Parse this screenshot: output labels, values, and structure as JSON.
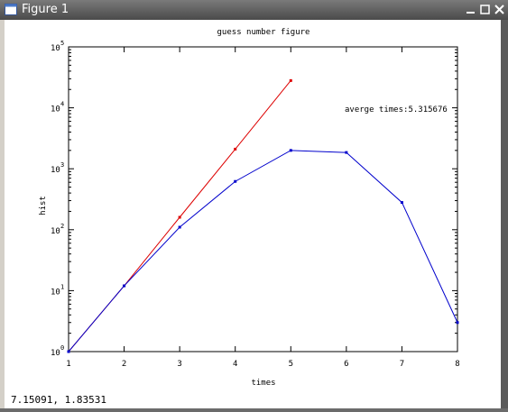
{
  "window": {
    "title": "Figure 1",
    "buttons": [
      "minimize",
      "maximize",
      "close"
    ]
  },
  "status": {
    "coordinates": "7.15091,  1.83531"
  },
  "chart_data": {
    "type": "line",
    "title": "guess number figure",
    "xlabel": "times",
    "ylabel": "hist",
    "xlim": [
      1,
      8
    ],
    "ylim": [
      1,
      100000
    ],
    "yscale": "log",
    "grid": false,
    "x_ticks": [
      "1",
      "2",
      "3",
      "4",
      "5",
      "6",
      "7",
      "8"
    ],
    "y_tick_bases": [
      "10",
      "10",
      "10",
      "10",
      "10",
      "10"
    ],
    "y_tick_exponents": [
      "0",
      "1",
      "2",
      "3",
      "4",
      "5"
    ],
    "annotation": "averge times:5.315676",
    "series": [
      {
        "color": "#dd0000",
        "x": [
          1,
          2,
          3,
          4,
          5
        ],
        "y": [
          1,
          12,
          160,
          2100,
          28000
        ]
      },
      {
        "color": "#0000cc",
        "x": [
          1,
          2,
          3,
          4,
          5,
          6,
          7,
          8
        ],
        "y": [
          1,
          12,
          110,
          620,
          2000,
          1850,
          280,
          3
        ]
      }
    ]
  }
}
